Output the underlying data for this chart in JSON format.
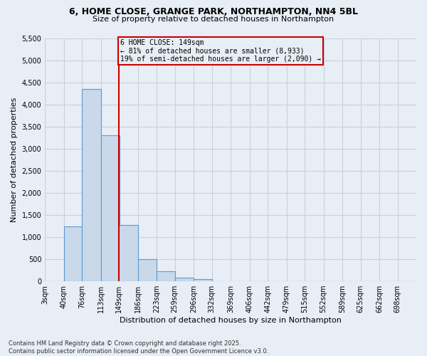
{
  "title1": "6, HOME CLOSE, GRANGE PARK, NORTHAMPTON, NN4 5BL",
  "title2": "Size of property relative to detached houses in Northampton",
  "xlabel": "Distribution of detached houses by size in Northampton",
  "ylabel": "Number of detached properties",
  "footer1": "Contains HM Land Registry data © Crown copyright and database right 2025.",
  "footer2": "Contains public sector information licensed under the Open Government Licence v3.0.",
  "annotation_line1": "6 HOME CLOSE: 149sqm",
  "annotation_line2": "← 81% of detached houses are smaller (8,933)",
  "annotation_line3": "19% of semi-detached houses are larger (2,090) →",
  "property_size": 149,
  "bins": [
    3,
    40,
    76,
    113,
    149,
    186,
    223,
    259,
    296,
    332,
    369,
    406,
    442,
    479,
    515,
    552,
    589,
    625,
    662,
    698,
    735
  ],
  "values": [
    0,
    1250,
    4350,
    3300,
    1280,
    500,
    220,
    80,
    55,
    0,
    0,
    0,
    0,
    0,
    0,
    0,
    0,
    0,
    0,
    0
  ],
  "bar_color": "#c9d9ea",
  "bar_edge_color": "#5b9bd5",
  "red_line_color": "#cc0000",
  "annotation_box_color": "#cc0000",
  "grid_color": "#c8d0dc",
  "background_color": "#e8eef5",
  "ylim": [
    0,
    5500
  ],
  "yticks": [
    0,
    500,
    1000,
    1500,
    2000,
    2500,
    3000,
    3500,
    4000,
    4500,
    5000,
    5500
  ],
  "title1_fontsize": 9,
  "title2_fontsize": 8,
  "ylabel_fontsize": 8,
  "xlabel_fontsize": 8,
  "tick_fontsize": 7,
  "footer_fontsize": 6
}
